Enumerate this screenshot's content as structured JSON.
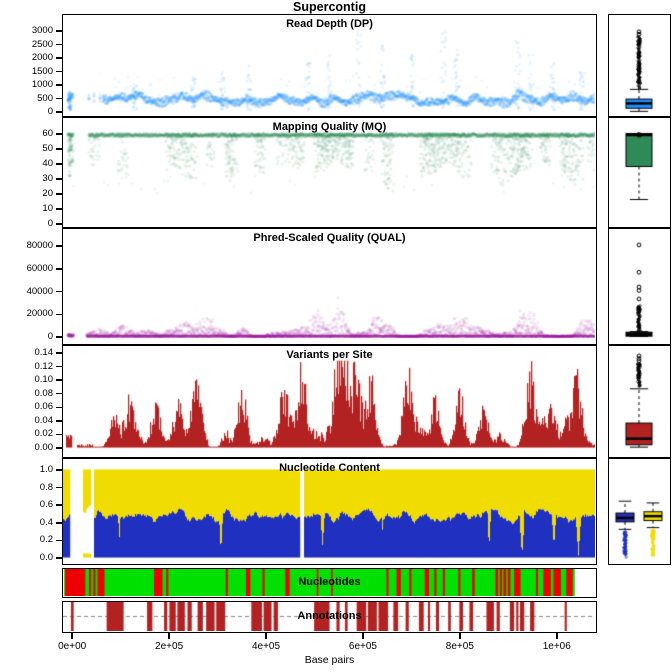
{
  "figure": {
    "title": "Supercontig",
    "background": "#FFFFFF"
  },
  "x_axis": {
    "label": "Base pairs",
    "lim": [
      -21000,
      1083000
    ],
    "ticks": [
      0,
      200000,
      400000,
      600000,
      800000,
      1000000
    ],
    "tick_labels": [
      "0e+00",
      "2e+05",
      "4e+05",
      "6e+05",
      "8e+05",
      "1e+06"
    ]
  },
  "chart_data": [
    {
      "id": "read-depth",
      "type": "scatter",
      "subtype": "depth",
      "title": "Read Depth (DP)",
      "point_color": "#1E90FF",
      "ylim": [
        0,
        3000
      ],
      "yticks": [
        0,
        500,
        1000,
        1500,
        2000,
        2500,
        3000
      ],
      "ytick_labels": [
        "0",
        "500",
        "1000",
        "1500",
        "2000",
        "2500",
        "3000"
      ],
      "seed": 101,
      "band": {
        "lo": 300,
        "hi": 660,
        "jitter": 300
      },
      "gaps": [
        [
          0.0,
          0.008
        ],
        [
          0.02,
          0.048
        ]
      ],
      "sparse": [
        0.048,
        0.075
      ],
      "left_column": {
        "f": 0.013,
        "lo": 60,
        "hi": 760
      },
      "spikes": [
        {
          "f": 0.135,
          "v": 950
        },
        {
          "f": 0.245,
          "v": 1250
        },
        {
          "f": 0.3,
          "v": 1500
        },
        {
          "f": 0.35,
          "v": 1650
        },
        {
          "f": 0.46,
          "v": 1850
        },
        {
          "f": 0.5,
          "v": 2050
        },
        {
          "f": 0.555,
          "v": 2950
        },
        {
          "f": 0.6,
          "v": 2400
        },
        {
          "f": 0.655,
          "v": 2150
        },
        {
          "f": 0.715,
          "v": 2950
        },
        {
          "f": 0.74,
          "v": 2350
        },
        {
          "f": 0.855,
          "v": 2550
        },
        {
          "f": 0.88,
          "v": 2150
        },
        {
          "f": 0.92,
          "v": 1750
        },
        {
          "f": 0.975,
          "v": 1550
        }
      ],
      "boxplot": {
        "q1": 120,
        "median": 300,
        "q3": 460,
        "whisker_low": 5,
        "whisker_high": 820,
        "outlier_stack": [
          860,
          2780
        ],
        "outliers": [
          2860,
          2950
        ],
        "box_fill": "#1E90FF",
        "point_color": "#000000"
      }
    },
    {
      "id": "mapping-quality",
      "type": "scatter",
      "subtype": "mq",
      "title": "Mapping Quality (MQ)",
      "point_color": "#2E8B57",
      "ylim": [
        0,
        60
      ],
      "yticks": [
        0,
        10,
        20,
        30,
        40,
        50,
        60
      ],
      "ytick_labels": [
        "0",
        "10",
        "20",
        "30",
        "40",
        "50",
        "60"
      ],
      "seed": 202,
      "gaps": [
        [
          0.0,
          0.008
        ],
        [
          0.02,
          0.048
        ]
      ],
      "left_column": {
        "f": 0.013,
        "lo": 25,
        "hi": 60
      },
      "boxplot": {
        "q1": 38,
        "median": 59,
        "q3": 60,
        "whisker_low": 16,
        "whisker_high": 60,
        "outlier_stack": [
          58,
          60
        ],
        "outliers": [],
        "box_fill": "#2E8B57",
        "point_color": "#000000"
      }
    },
    {
      "id": "phred-quality",
      "type": "scatter",
      "subtype": "qual",
      "title": "Phred-Scaled Quality (QUAL)",
      "point_color": "#9B1B9B",
      "ylim": [
        0,
        80000
      ],
      "yticks": [
        0,
        20000,
        40000,
        60000,
        80000
      ],
      "ytick_labels": [
        "0",
        "20000",
        "40000",
        "60000",
        "80000"
      ],
      "seed": 303,
      "gaps": [
        [
          0.0,
          0.008
        ],
        [
          0.02,
          0.045
        ]
      ],
      "left_column": {
        "f": 0.013,
        "lo": 0,
        "hi": 2000
      },
      "mound_max": 17000,
      "boxplot": {
        "q1": 300,
        "median": 1600,
        "q3": 3800,
        "whisker_low": 0,
        "whisker_high": 4300,
        "outlier_stack": [
          4600,
          27500
        ],
        "outliers": [
          33000,
          40500,
          43500,
          56500,
          80500
        ],
        "box_fill": "#000000",
        "point_color": "#000000"
      }
    },
    {
      "id": "variants-per-site",
      "type": "bar",
      "subtype": "bars",
      "title": "Variants per Site",
      "bar_color": "#B22222",
      "ylim": [
        0,
        0.14
      ],
      "yticks": [
        0,
        0.02,
        0.04,
        0.06,
        0.08,
        0.1,
        0.12,
        0.14
      ],
      "ytick_labels": [
        "0.00",
        "0.02",
        "0.04",
        "0.06",
        "0.08",
        "0.10",
        "0.12",
        "0.14"
      ],
      "seed": 404,
      "zero": [
        [
          0.0,
          0.004
        ],
        [
          0.016,
          0.026
        ]
      ],
      "left_block": [
        0.004,
        0.016,
        0.018
      ],
      "low": [
        0.026,
        0.055
      ],
      "peaks": [
        [
          0.095,
          0.04
        ],
        [
          0.125,
          0.057
        ],
        [
          0.175,
          0.06
        ],
        [
          0.215,
          0.062
        ],
        [
          0.248,
          0.083
        ],
        [
          0.335,
          0.082
        ],
        [
          0.415,
          0.07
        ],
        [
          0.448,
          0.098
        ],
        [
          0.515,
          0.122
        ],
        [
          0.53,
          0.115
        ],
        [
          0.55,
          0.09
        ],
        [
          0.578,
          0.1
        ],
        [
          0.648,
          0.102
        ],
        [
          0.7,
          0.05
        ],
        [
          0.745,
          0.06
        ],
        [
          0.79,
          0.062
        ],
        [
          0.876,
          0.092
        ],
        [
          0.917,
          0.062
        ],
        [
          0.965,
          0.09
        ]
      ],
      "boxplot": {
        "q1": 0.004,
        "median": 0.013,
        "q3": 0.036,
        "whisker_low": 0.0005,
        "whisker_high": 0.0865,
        "outlier_stack": [
          0.089,
          0.124
        ],
        "outliers": [
          0.128,
          0.131,
          0.135
        ],
        "box_fill": "#B22222",
        "point_color": "#000000"
      }
    },
    {
      "id": "nucleotide-content",
      "type": "area",
      "subtype": "stacked",
      "title": "Nucleotide Content",
      "colors": {
        "top": "#F0DC00",
        "bottom": "#2030C0"
      },
      "ylim": [
        0,
        1
      ],
      "yticks": [
        0,
        0.2,
        0.4,
        0.6,
        0.8,
        1
      ],
      "ytick_labels": [
        "0.0",
        "0.2",
        "0.4",
        "0.6",
        "0.8",
        "1.0"
      ],
      "seed": 505,
      "empty": [
        [
          0.013,
          0.036
        ],
        [
          0.051,
          0.058
        ],
        [
          0.444,
          0.452
        ]
      ],
      "yellow_only": [
        [
          0.036,
          0.051
        ]
      ],
      "dips": [
        {
          "f": 0.105,
          "w": 0.003,
          "to": 0.2
        },
        {
          "f": 0.296,
          "w": 0.003,
          "to": 0.05
        },
        {
          "f": 0.487,
          "w": 0.004,
          "to": 0.13
        },
        {
          "f": 0.6,
          "w": 0.002,
          "to": 0.25
        },
        {
          "f": 0.8,
          "w": 0.003,
          "to": 0.1
        },
        {
          "f": 0.862,
          "w": 0.004,
          "to": 0.02
        },
        {
          "f": 0.922,
          "w": 0.004,
          "to": 0.12
        },
        {
          "f": 0.968,
          "w": 0.004,
          "to": 0.02
        }
      ],
      "boxplots": [
        {
          "q1": 0.405,
          "median": 0.45,
          "q3": 0.505,
          "whisker_low": 0.32,
          "whisker_high": 0.64,
          "outlier_stack": [
            0.0,
            0.3
          ],
          "outliers": [],
          "box_fill": "#2030C0",
          "point_color": "#2030C0"
        },
        {
          "q1": 0.42,
          "median": 0.47,
          "q3": 0.52,
          "whisker_low": 0.34,
          "whisker_high": 0.62,
          "outlier_stack": [
            0.02,
            0.31
          ],
          "outliers": [],
          "box_fill": "#F0DC00",
          "point_color": "#F0DC00"
        }
      ]
    },
    {
      "id": "nucleotides",
      "type": "track",
      "subtype": "track",
      "title": "Nucleotides",
      "bg_color": "#00E000",
      "mark_color": "#EE0000",
      "extent": [
        -0.012,
        0.962
      ],
      "white_gaps": [
        [
          -0.0055,
          0.002
        ]
      ],
      "marks": [
        [
          0.004,
          0.042
        ],
        [
          0.049,
          0.053
        ],
        [
          0.057,
          0.061
        ],
        [
          0.065,
          0.078
        ],
        [
          0.171,
          0.187
        ],
        [
          0.194,
          0.198
        ],
        [
          0.306,
          0.31
        ],
        [
          0.344,
          0.352
        ],
        [
          0.375,
          0.379
        ],
        [
          0.418,
          0.426
        ],
        [
          0.477,
          0.48
        ],
        [
          0.504,
          0.507
        ],
        [
          0.608,
          0.612
        ],
        [
          0.627,
          0.635
        ],
        [
          0.651,
          0.655
        ],
        [
          0.68,
          0.688
        ],
        [
          0.698,
          0.702
        ],
        [
          0.714,
          0.718
        ],
        [
          0.743,
          0.747
        ],
        [
          0.769,
          0.774
        ],
        [
          0.813,
          0.818
        ],
        [
          0.821,
          0.825
        ],
        [
          0.828,
          0.833
        ],
        [
          0.836,
          0.841
        ],
        [
          0.848,
          0.86
        ],
        [
          0.889,
          0.893
        ],
        [
          0.903,
          0.917
        ],
        [
          0.922,
          0.936
        ],
        [
          0.946,
          0.958
        ]
      ]
    },
    {
      "id": "annotations",
      "type": "blocks",
      "subtype": "blocks",
      "title": "Annotations",
      "block_color": "#B22222",
      "dash_color": "#888888",
      "blocks": [
        [
          0.015,
          0.02
        ],
        [
          0.082,
          0.114
        ],
        [
          0.158,
          0.168
        ],
        [
          0.19,
          0.196
        ],
        [
          0.2,
          0.212
        ],
        [
          0.215,
          0.229
        ],
        [
          0.234,
          0.242
        ],
        [
          0.253,
          0.263
        ],
        [
          0.269,
          0.285
        ],
        [
          0.288,
          0.305
        ],
        [
          0.354,
          0.374
        ],
        [
          0.377,
          0.392
        ],
        [
          0.396,
          0.404
        ],
        [
          0.472,
          0.501
        ],
        [
          0.514,
          0.52
        ],
        [
          0.53,
          0.535
        ],
        [
          0.552,
          0.57
        ],
        [
          0.573,
          0.59
        ],
        [
          0.593,
          0.611
        ],
        [
          0.621,
          0.63
        ],
        [
          0.644,
          0.65
        ],
        [
          0.669,
          0.678
        ],
        [
          0.686,
          0.69
        ],
        [
          0.701,
          0.707
        ],
        [
          0.724,
          0.729
        ],
        [
          0.745,
          0.752
        ],
        [
          0.764,
          0.771
        ],
        [
          0.796,
          0.81
        ],
        [
          0.815,
          0.821
        ],
        [
          0.84,
          0.848
        ],
        [
          0.852,
          0.856
        ],
        [
          0.859,
          0.867
        ],
        [
          0.878,
          0.886
        ],
        [
          0.943,
          0.947
        ]
      ]
    }
  ]
}
